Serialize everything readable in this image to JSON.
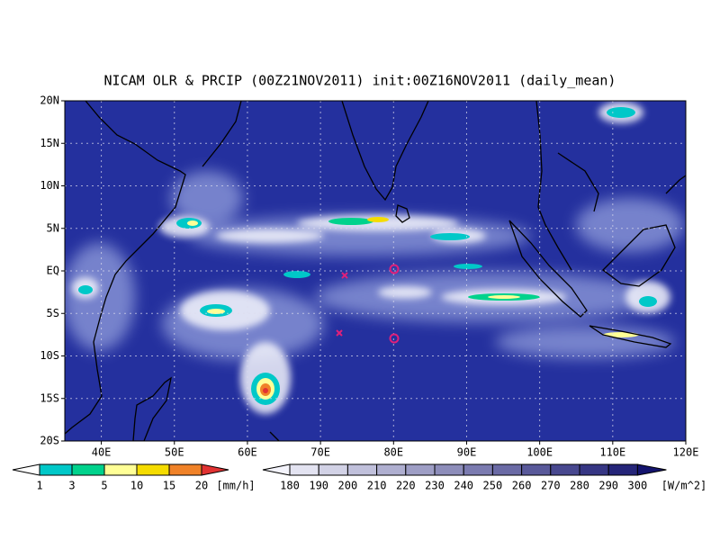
{
  "title": "NICAM OLR & PRCIP (00Z21NOV2011) init:00Z16NOV2011 (daily_mean)",
  "map": {
    "lat_labels": [
      "20N",
      "15N",
      "10N",
      "5N",
      "EQ",
      "5S",
      "10S",
      "15S",
      "20S"
    ],
    "lon_labels": [
      "40E",
      "50E",
      "60E",
      "70E",
      "80E",
      "90E",
      "100E",
      "110E",
      "120E"
    ]
  },
  "precip_colorbar": {
    "labels": [
      "1",
      "3",
      "5",
      "10",
      "15",
      "20"
    ],
    "unit": "[mm/h]"
  },
  "olr_colorbar": {
    "labels": [
      "180",
      "190",
      "200",
      "210",
      "220",
      "230",
      "240",
      "250",
      "260",
      "270",
      "280",
      "290",
      "300"
    ],
    "unit": "[W/m^2]"
  }
}
